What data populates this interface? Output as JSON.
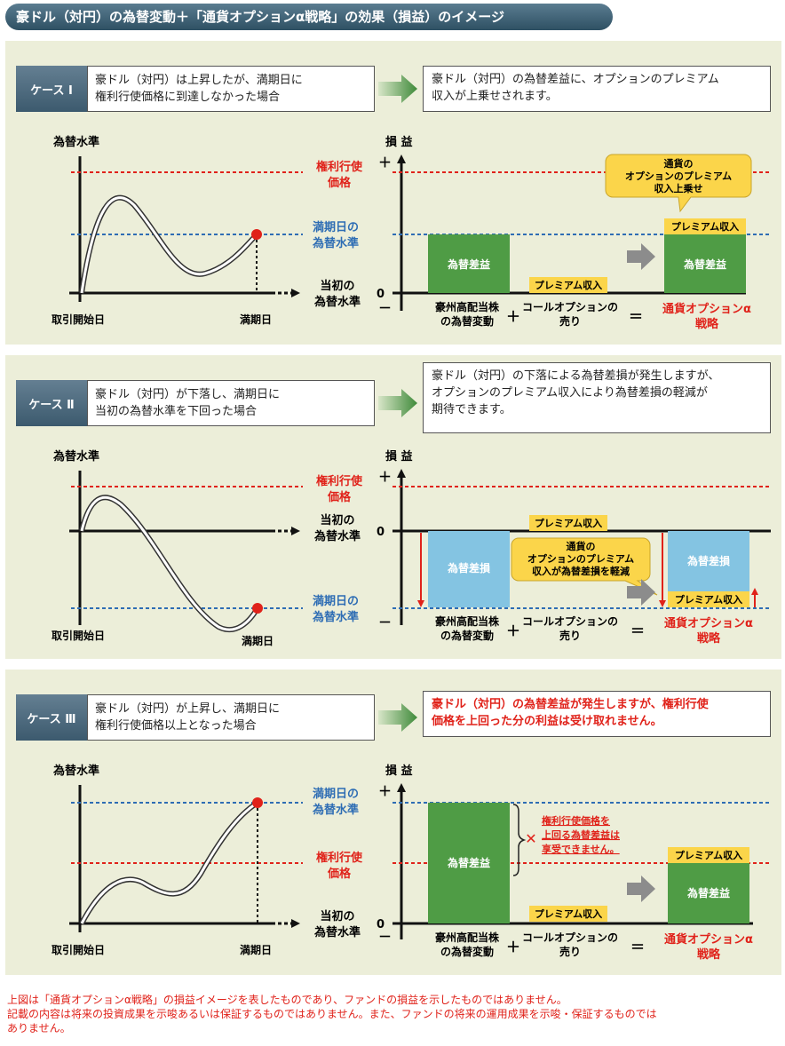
{
  "title": "豪ドル（対円）の為替変動＋「通貨オプションα戦略」の効果（損益）のイメージ",
  "common": {
    "fx_level": "為替水準",
    "pnl": "損 益",
    "plus": "＋",
    "minus": "－",
    "zero": "0",
    "strike_line1": "権利行使",
    "strike_line2": "価格",
    "initial_line1": "当初の",
    "initial_line2": "為替水準",
    "maturity_line1": "満期日の",
    "maturity_line2": "為替水準",
    "start_day": "取引開始日",
    "maturity_day": "満期日",
    "fx_gain": "為替差益",
    "fx_loss": "為替差損",
    "premium": "プレミアム収入",
    "aud_line1": "豪州高配当株",
    "aud_line2": "の為替変動",
    "call_line1": "コールオプションの",
    "call_line2": "売り",
    "op_plus": "＋",
    "op_eq": "＝",
    "strategy_line1": "通貨オプションα",
    "strategy_line2": "戦略"
  },
  "case1": {
    "label": "ケース Ⅰ",
    "desc_line1": "豪ドル（対円）は上昇したが、満期日に",
    "desc_line2": "権利行使価格に到達しなかった場合",
    "result_line1": "豪ドル（対円）の為替差益に、オプションのプレミアム",
    "result_line2": "収入が上乗せされます。",
    "callout_line1": "通貨の",
    "callout_line2": "オプションのプレミアム",
    "callout_line3": "収入上乗せ"
  },
  "case2": {
    "label": "ケース Ⅱ",
    "desc_line1": "豪ドル（対円）が下落し、満期日に",
    "desc_line2": "当初の為替水準を下回った場合",
    "result_line1": "豪ドル（対円）の下落による為替差損が発生しますが、",
    "result_line2": "オプションのプレミアム収入により為替差損の軽減が",
    "result_line3": "期待できます。",
    "callout_line1": "通貨の",
    "callout_line2": "オプションのプレミアム",
    "callout_line3": "収入が為替差損を軽減"
  },
  "case3": {
    "label": "ケース Ⅲ",
    "desc_line1": "豪ドル（対円）が上昇し、満期日に",
    "desc_line2": "権利行使価格以上となった場合",
    "result_line1": "豪ドル（対円）の為替差益が発生しますが、権利行使",
    "result_line2": "価格を上回った分の利益は受け取れません。",
    "note_line1": "権利行使価格を",
    "note_line2": "上回る為替差益は",
    "note_line3": "享受できません。",
    "cross": "✕"
  },
  "footnote_line1": "上図は「通貨オプションα戦略」の損益イメージを表したものであり、ファンドの損益を示したものではありません。",
  "footnote_line2": "記載の内容は将来の投資成果を示唆あるいは保証するものではありません。また、ファンドの将来の運用成果を示唆・保証するものでは",
  "footnote_line3": "ありません。",
  "colors": {
    "green": "#4f9c45",
    "blue_bar": "#84c4e2",
    "yellow": "#fbd54a",
    "red": "#e0221a",
    "blue": "#2e6db4"
  }
}
